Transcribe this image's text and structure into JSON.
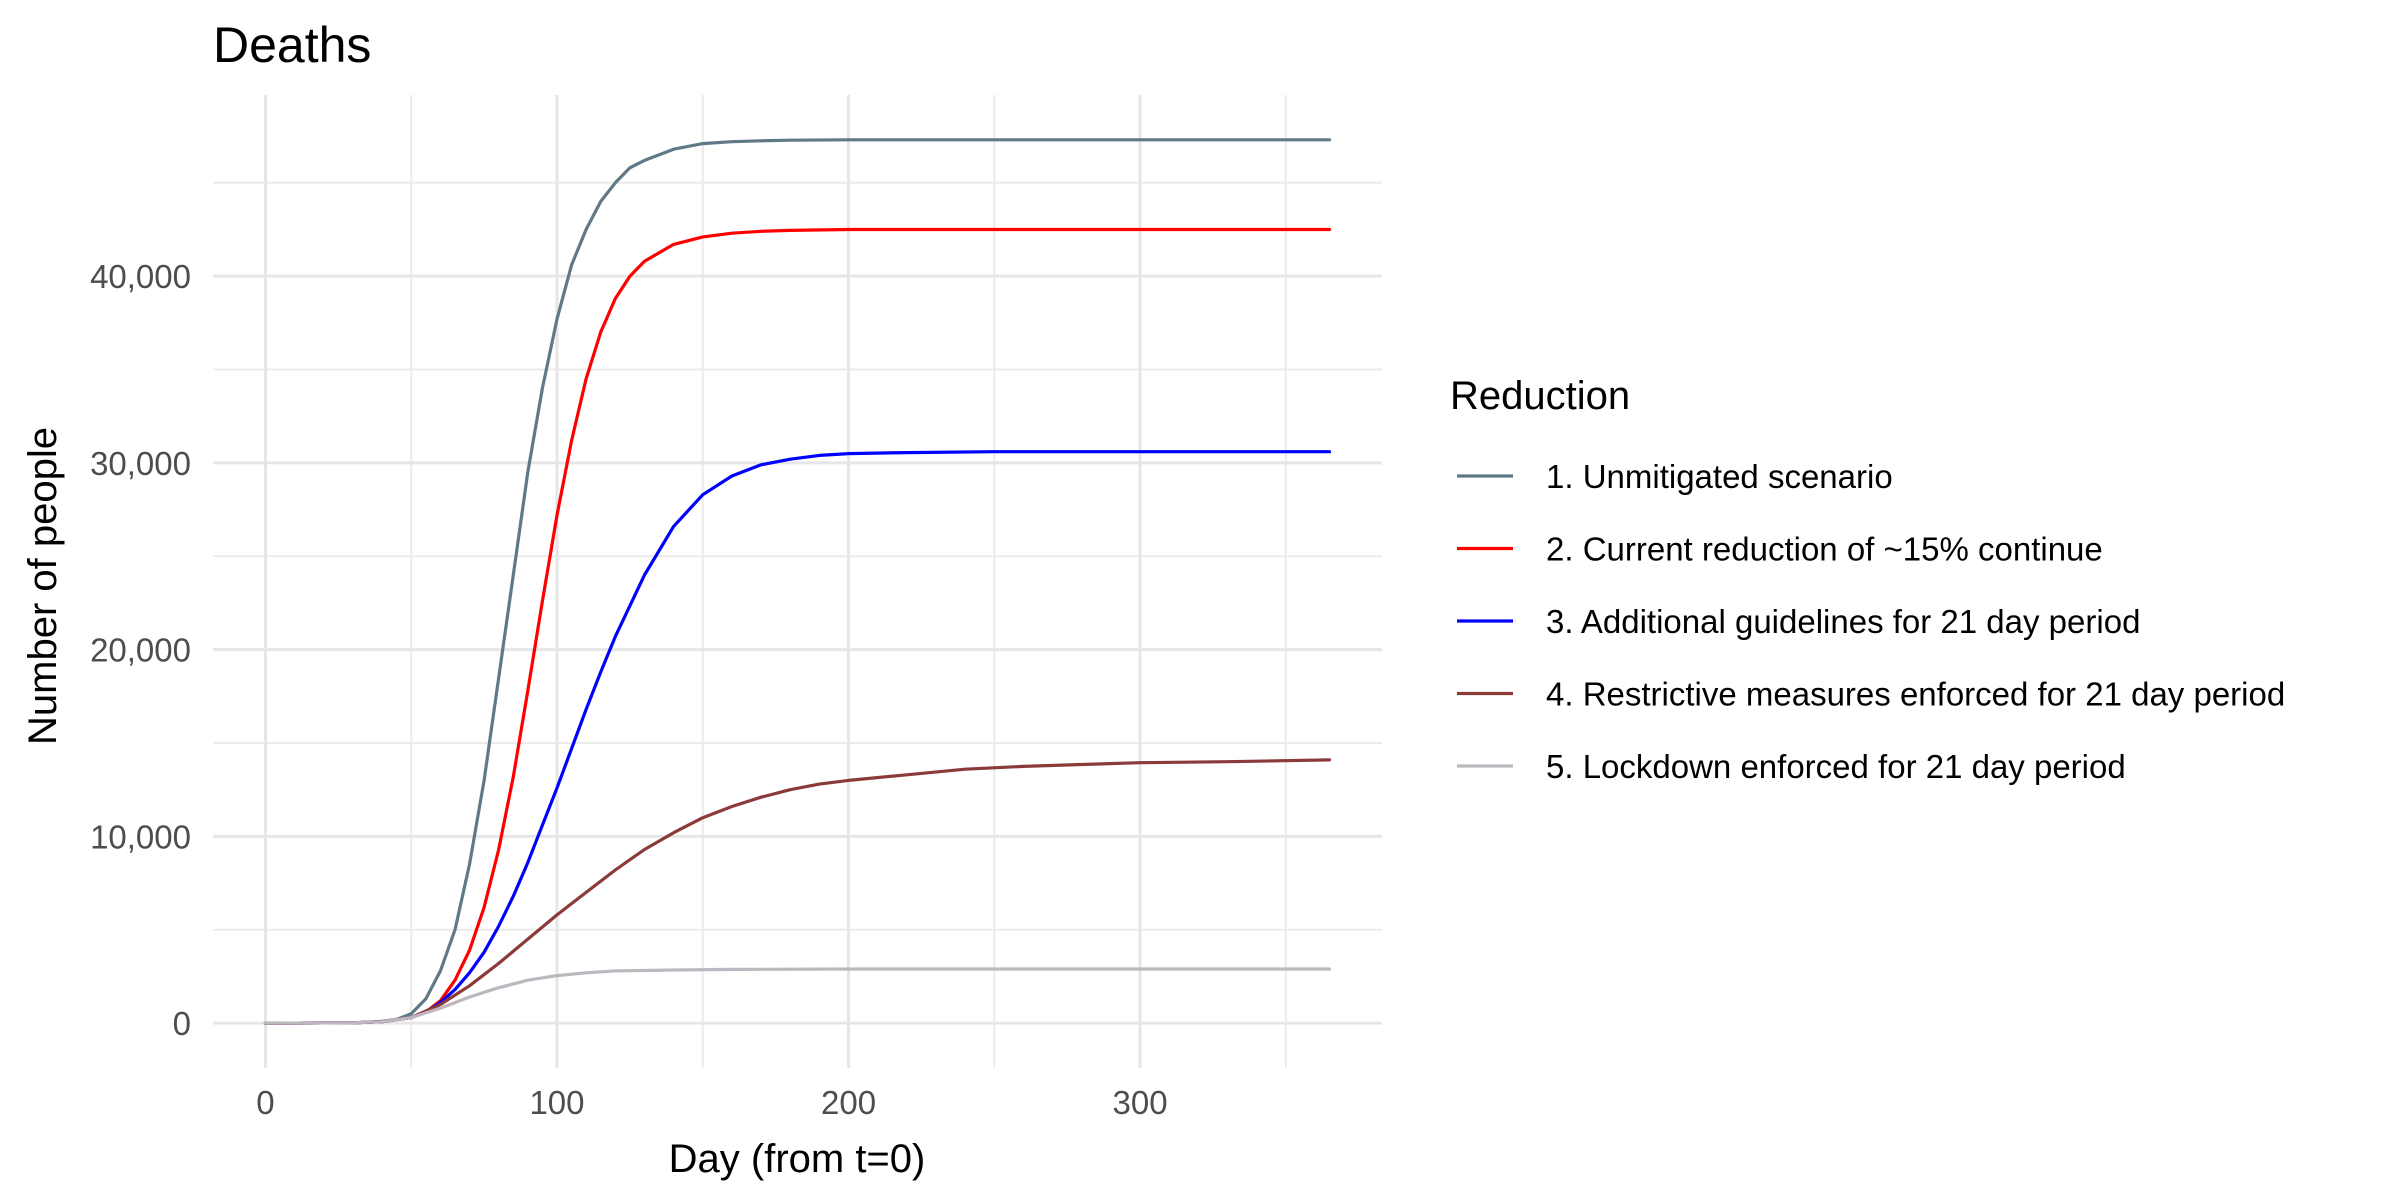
{
  "chart_data": {
    "type": "line",
    "title": "Deaths",
    "xlabel": "Day (from t=0)",
    "ylabel": "Number of people",
    "xlim": [
      -18,
      383
    ],
    "ylim": [
      -2400,
      49700
    ],
    "x_ticks": [
      0,
      100,
      200,
      300
    ],
    "x_tick_labels": [
      "0",
      "100",
      "200",
      "300"
    ],
    "y_ticks": [
      0,
      10000,
      20000,
      30000,
      40000
    ],
    "y_tick_labels": [
      "0",
      "10,000",
      "20,000",
      "30,000",
      "40,000"
    ],
    "grid": true,
    "legend_title": "Reduction",
    "legend_position": "right",
    "series": [
      {
        "name": "1. Unmitigated scenario",
        "color": "#5f7a86",
        "x": [
          0,
          30,
          40,
          45,
          50,
          55,
          60,
          65,
          70,
          75,
          80,
          85,
          90,
          95,
          100,
          105,
          110,
          115,
          120,
          125,
          130,
          140,
          150,
          160,
          170,
          180,
          200,
          250,
          300,
          365
        ],
        "y": [
          0,
          20,
          100,
          200,
          500,
          1300,
          2800,
          5000,
          8500,
          13000,
          18500,
          24000,
          29500,
          34000,
          37700,
          40600,
          42500,
          44000,
          45000,
          45800,
          46200,
          46800,
          47100,
          47200,
          47250,
          47280,
          47300,
          47300,
          47300,
          47300
        ]
      },
      {
        "name": "2. Current reduction of ~15% continue",
        "color": "#ff0000",
        "x": [
          0,
          30,
          40,
          50,
          55,
          60,
          65,
          70,
          75,
          80,
          85,
          90,
          95,
          100,
          105,
          110,
          115,
          120,
          125,
          130,
          140,
          150,
          160,
          170,
          180,
          200,
          250,
          300,
          365
        ],
        "y": [
          0,
          20,
          80,
          300,
          600,
          1200,
          2300,
          3900,
          6200,
          9300,
          13200,
          17800,
          22600,
          27200,
          31200,
          34500,
          37000,
          38800,
          40000,
          40800,
          41700,
          42100,
          42300,
          42400,
          42450,
          42500,
          42500,
          42500,
          42500
        ]
      },
      {
        "name": "3. Additional guidelines for 21 day period",
        "color": "#0000ff",
        "x": [
          0,
          30,
          40,
          50,
          55,
          60,
          65,
          70,
          75,
          80,
          85,
          90,
          95,
          100,
          105,
          110,
          115,
          120,
          130,
          140,
          150,
          160,
          170,
          180,
          190,
          200,
          220,
          250,
          300,
          365
        ],
        "y": [
          0,
          20,
          80,
          300,
          600,
          1100,
          1800,
          2700,
          3800,
          5200,
          6800,
          8600,
          10600,
          12600,
          14700,
          16800,
          18800,
          20700,
          24000,
          26600,
          28300,
          29300,
          29900,
          30200,
          30400,
          30500,
          30550,
          30600,
          30600,
          30600
        ]
      },
      {
        "name": "4. Restrictive measures enforced for 21 day period",
        "color": "#8b3a3a",
        "x": [
          0,
          30,
          40,
          50,
          60,
          70,
          80,
          90,
          100,
          110,
          120,
          130,
          140,
          150,
          160,
          170,
          180,
          190,
          200,
          220,
          240,
          260,
          280,
          300,
          330,
          365
        ],
        "y": [
          0,
          20,
          80,
          300,
          1000,
          2000,
          3200,
          4500,
          5800,
          7000,
          8200,
          9300,
          10200,
          11000,
          11600,
          12100,
          12500,
          12800,
          13000,
          13300,
          13600,
          13750,
          13850,
          13950,
          14000,
          14100
        ]
      },
      {
        "name": "5. Lockdown enforced for 21 day period",
        "color": "#bdb8bf",
        "x": [
          0,
          30,
          40,
          50,
          60,
          70,
          80,
          90,
          100,
          110,
          120,
          140,
          160,
          200,
          250,
          300,
          365
        ],
        "y": [
          0,
          20,
          80,
          300,
          800,
          1400,
          1900,
          2300,
          2550,
          2700,
          2800,
          2850,
          2880,
          2900,
          2900,
          2900,
          2900
        ]
      }
    ]
  }
}
